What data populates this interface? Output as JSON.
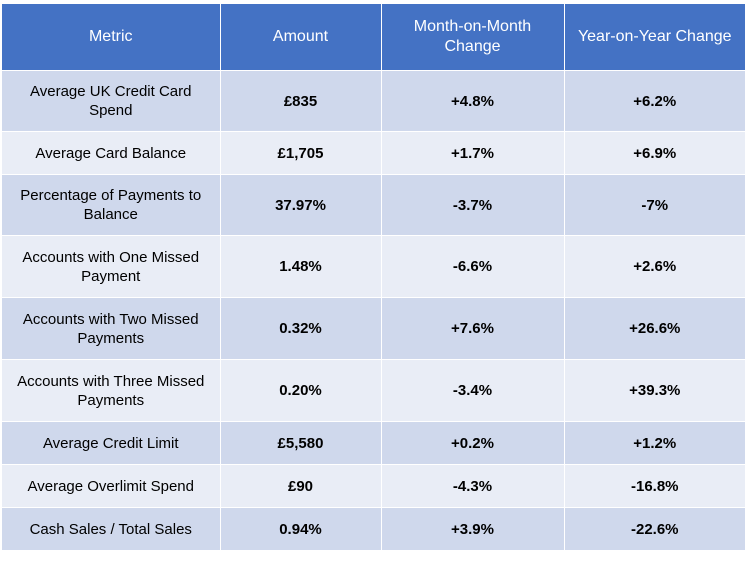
{
  "table": {
    "headers": [
      "Metric",
      "Amount",
      "Month-on-Month Change",
      "Year-on-Year Change"
    ],
    "rows": [
      {
        "metric": "Average UK Credit Card Spend",
        "amount": "£835",
        "mom": "+4.8%",
        "yoy": "+6.2%"
      },
      {
        "metric": "Average Card Balance",
        "amount": "£1,705",
        "mom": "+1.7%",
        "yoy": "+6.9%"
      },
      {
        "metric": "Percentage of Payments to Balance",
        "amount": "37.97%",
        "mom": "-3.7%",
        "yoy": "-7%"
      },
      {
        "metric": "Accounts with One Missed Payment",
        "amount": "1.48%",
        "mom": "-6.6%",
        "yoy": "+2.6%"
      },
      {
        "metric": "Accounts with Two Missed Payments",
        "amount": "0.32%",
        "mom": "+7.6%",
        "yoy": "+26.6%"
      },
      {
        "metric": "Accounts with Three Missed Payments",
        "amount": "0.20%",
        "mom": "-3.4%",
        "yoy": "+39.3%"
      },
      {
        "metric": "Average Credit Limit",
        "amount": "£5,580",
        "mom": "+0.2%",
        "yoy": "+1.2%"
      },
      {
        "metric": "Average Overlimit Spend",
        "amount": "£90",
        "mom": "-4.3%",
        "yoy": "-16.8%"
      },
      {
        "metric": "Cash Sales / Total Sales",
        "amount": "0.94%",
        "mom": "+3.9%",
        "yoy": "-22.6%"
      }
    ]
  },
  "colors": {
    "header_bg": "#4472c4",
    "row_dark": "#cfd8ec",
    "row_light": "#e9edf6"
  }
}
